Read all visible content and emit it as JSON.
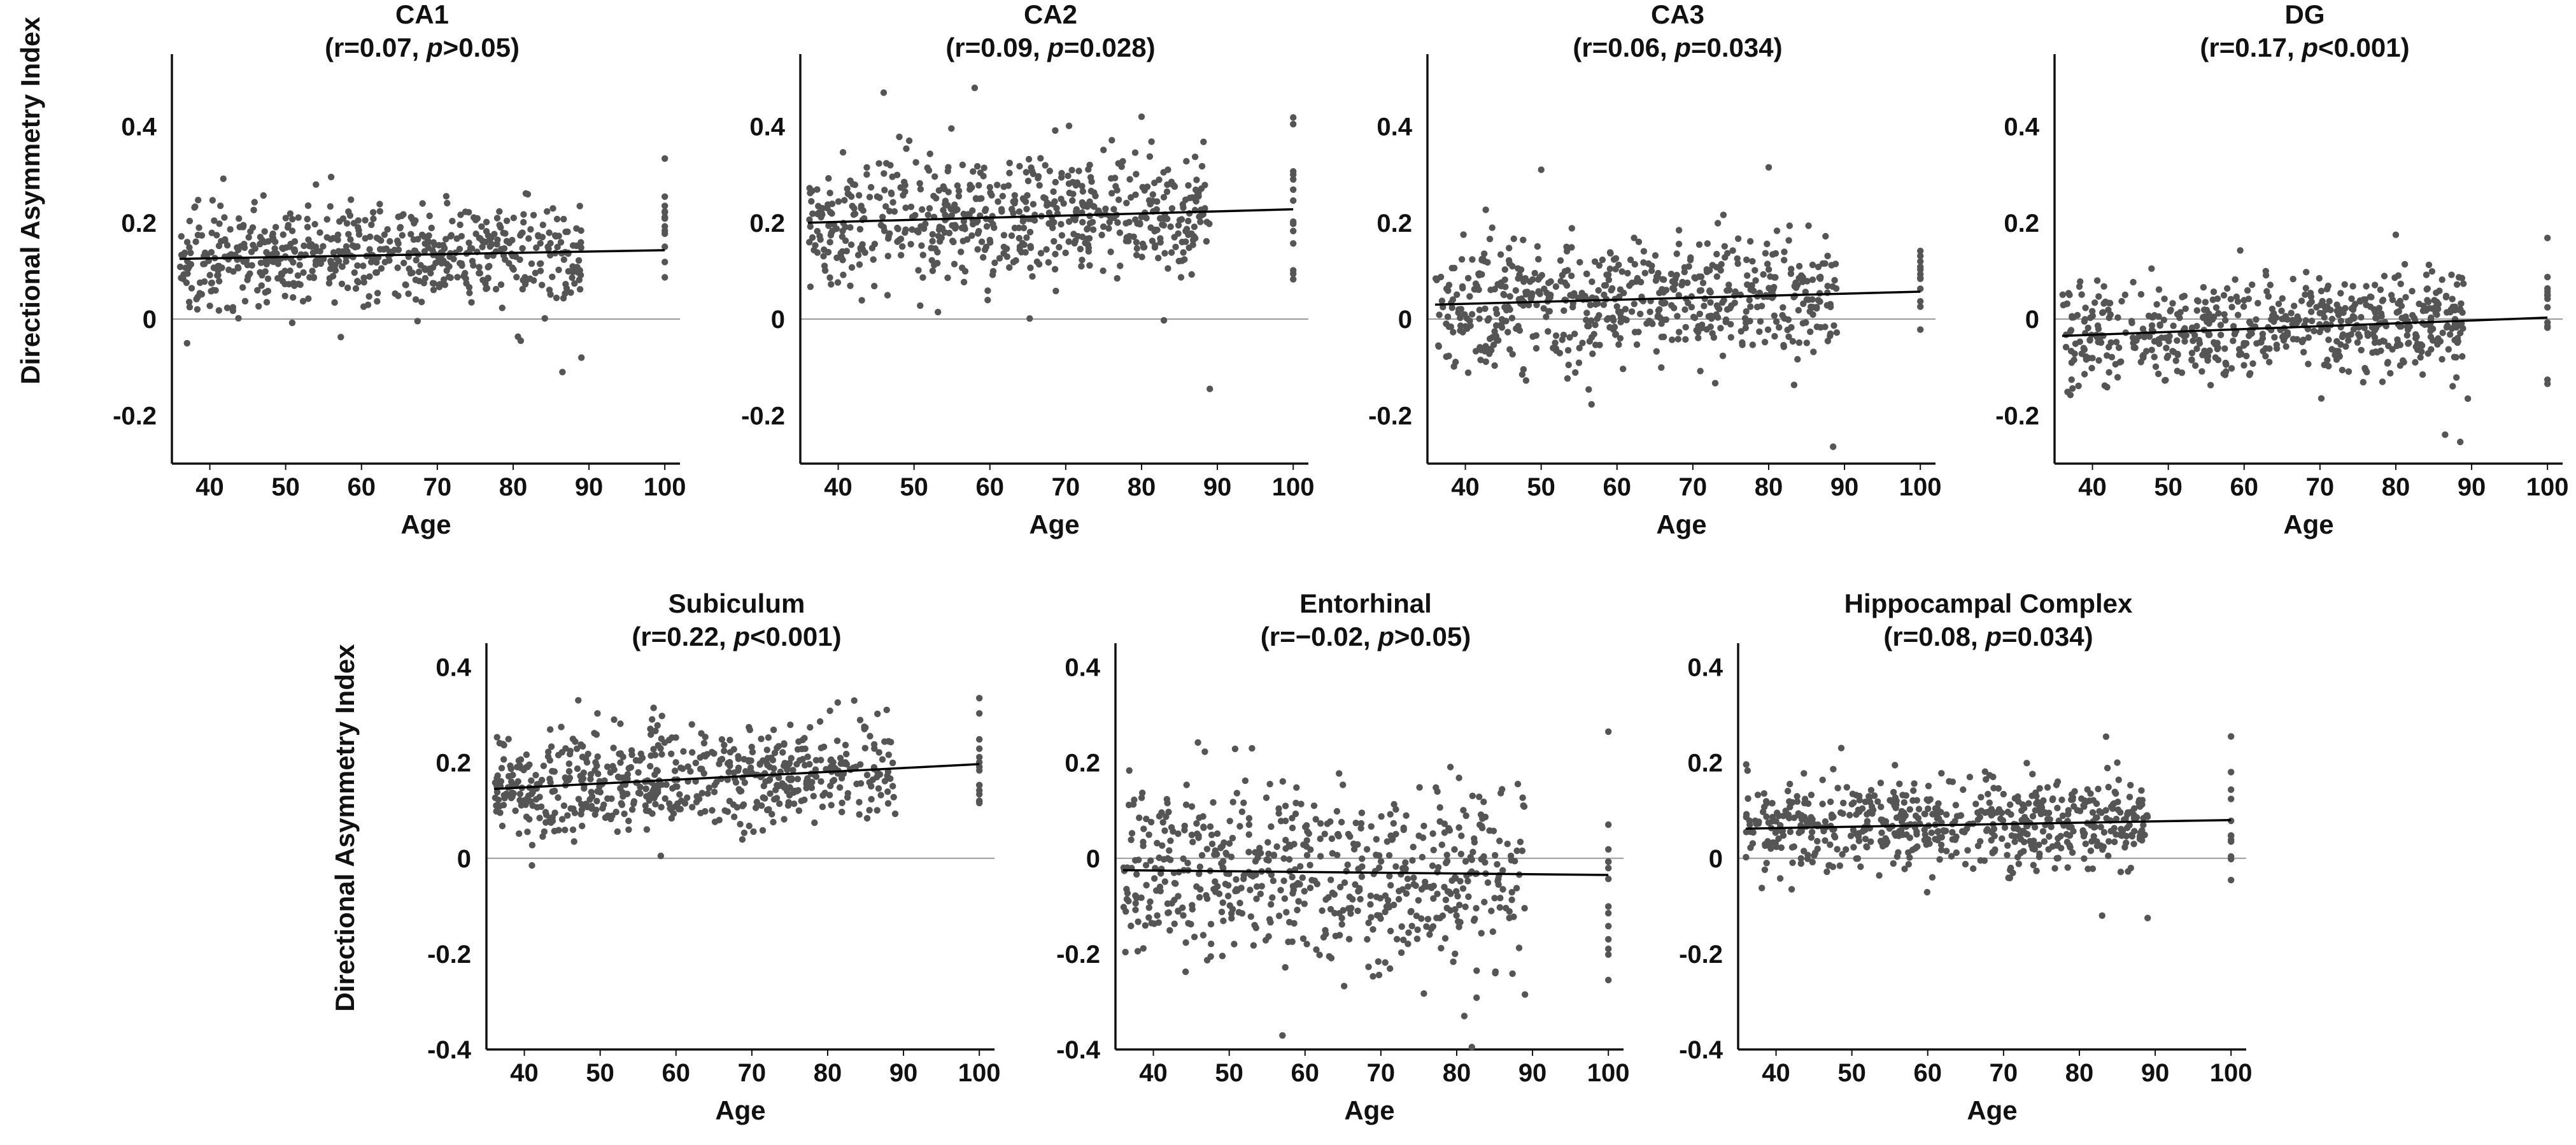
{
  "figure": {
    "ylabel": "Directional Asymmetry Index",
    "xlabel": "Age",
    "colors": {
      "point": "#555555",
      "axis": "#111111",
      "zero_line": "#9a9a9a",
      "trend": "#000000"
    }
  },
  "chart_data": [
    {
      "type": "scatter",
      "name": "CA1",
      "title": "CA1",
      "stat": {
        "r_text": "(r=0.07, ",
        "p_sym": "p",
        "p_text": ">0.05)"
      },
      "xlabel": "Age",
      "ylabel": "Directional Asymmetry Index",
      "xlim": [
        35,
        102
      ],
      "ylim": [
        -0.3,
        0.55
      ],
      "xticks": [
        40,
        50,
        60,
        70,
        80,
        90,
        100
      ],
      "yticks": [
        0.4,
        0.2,
        0,
        -0.2
      ],
      "ytick_labels": [
        "0.4",
        "0.2",
        "0",
        "-0.2"
      ],
      "point_model": {
        "mean_at_36": 0.125,
        "slope_per_year": 0.0003,
        "sd": 0.05,
        "n": 600,
        "x_range": [
          36,
          89
        ],
        "n_at_100": 14
      },
      "trend": {
        "x": [
          36,
          100
        ],
        "y": [
          0.125,
          0.143
        ]
      },
      "outliers": [
        [
          86.5,
          -0.11
        ],
        [
          89,
          -0.08
        ],
        [
          81,
          -0.045
        ],
        [
          37,
          -0.05
        ],
        [
          56,
          0.295
        ]
      ]
    },
    {
      "type": "scatter",
      "name": "CA2",
      "title": "CA2",
      "stat": {
        "r_text": "(r=0.09, ",
        "p_sym": "p",
        "p_text": "=0.028)"
      },
      "xlabel": "Age",
      "ylabel": "Directional Asymmetry Index",
      "xlim": [
        35,
        102
      ],
      "ylim": [
        -0.3,
        0.55
      ],
      "xticks": [
        40,
        50,
        60,
        70,
        80,
        90,
        100
      ],
      "yticks": [
        0.4,
        0.2,
        0,
        -0.2
      ],
      "ytick_labels": [
        "0.4",
        "0.2",
        "0",
        "-0.2"
      ],
      "point_model": {
        "mean_at_36": 0.2,
        "slope_per_year": 0.0004,
        "sd": 0.07,
        "n": 600,
        "x_range": [
          36,
          89
        ],
        "n_at_100": 14
      },
      "trend": {
        "x": [
          36,
          100
        ],
        "y": [
          0.2,
          0.228
        ]
      },
      "outliers": [
        [
          89,
          -0.145
        ],
        [
          46,
          0.47
        ],
        [
          80,
          0.42
        ],
        [
          58,
          0.48
        ]
      ]
    },
    {
      "type": "scatter",
      "name": "CA3",
      "title": "CA3",
      "stat": {
        "r_text": "(r=0.06, ",
        "p_sym": "p",
        "p_text": "=0.034)"
      },
      "xlabel": "Age",
      "ylabel": "Directional Asymmetry Index",
      "xlim": [
        35,
        102
      ],
      "ylim": [
        -0.3,
        0.55
      ],
      "xticks": [
        40,
        50,
        60,
        70,
        80,
        90,
        100
      ],
      "yticks": [
        0.4,
        0.2,
        0,
        -0.2
      ],
      "ytick_labels": [
        "0.4",
        "0.2",
        "0",
        "-0.2"
      ],
      "point_model": {
        "mean_at_36": 0.03,
        "slope_per_year": 0.0004,
        "sd": 0.065,
        "n": 600,
        "x_range": [
          36,
          89
        ],
        "n_at_100": 12
      },
      "trend": {
        "x": [
          36,
          100
        ],
        "y": [
          0.03,
          0.057
        ]
      },
      "outliers": [
        [
          88.5,
          -0.265
        ],
        [
          80,
          0.315
        ],
        [
          50,
          0.31
        ]
      ]
    },
    {
      "type": "scatter",
      "name": "DG",
      "title": "DG",
      "stat": {
        "r_text": "(r=0.17, ",
        "p_sym": "p",
        "p_text": "<0.001)"
      },
      "xlabel": "Age",
      "ylabel": "Directional Asymmetry Index",
      "xlim": [
        35,
        102
      ],
      "ylim": [
        -0.3,
        0.55
      ],
      "xticks": [
        40,
        50,
        60,
        70,
        80,
        90,
        100
      ],
      "yticks": [
        0.4,
        0.2,
        0,
        -0.2
      ],
      "ytick_labels": [
        "0.4",
        "0.2",
        "0",
        "-0.2"
      ],
      "point_model": {
        "mean_at_36": -0.035,
        "slope_per_year": 0.0006,
        "sd": 0.05,
        "n": 600,
        "x_range": [
          36,
          89
        ],
        "n_at_100": 14
      },
      "trend": {
        "x": [
          36,
          100
        ],
        "y": [
          -0.035,
          0.003
        ]
      },
      "outliers": [
        [
          86.5,
          -0.24
        ],
        [
          88.5,
          -0.255
        ],
        [
          89.5,
          -0.165
        ],
        [
          80,
          0.175
        ]
      ]
    },
    {
      "type": "scatter",
      "name": "Subiculum",
      "title": "Subiculum",
      "stat": {
        "r_text": "(r=0.22, ",
        "p_sym": "p",
        "p_text": "<0.001)"
      },
      "xlabel": "Age",
      "ylabel": "Directional Asymmetry Index",
      "xlim": [
        35,
        102
      ],
      "ylim": [
        -0.4,
        0.45
      ],
      "xticks": [
        40,
        50,
        60,
        70,
        80,
        90,
        100
      ],
      "yticks": [
        0.4,
        0.2,
        0,
        -0.2,
        -0.4
      ],
      "ytick_labels": [
        "0.4",
        "0.2",
        "0",
        "-0.2",
        "-0.4"
      ],
      "point_model": {
        "mean_at_36": 0.145,
        "slope_per_year": 0.0008,
        "sd": 0.055,
        "n": 600,
        "x_range": [
          36,
          89
        ],
        "n_at_100": 14
      },
      "trend": {
        "x": [
          36,
          100
        ],
        "y": [
          0.145,
          0.197
        ]
      },
      "outliers": [
        [
          41,
          -0.015
        ],
        [
          58,
          0.005
        ],
        [
          83.5,
          0.33
        ],
        [
          100,
          0.335
        ]
      ]
    },
    {
      "type": "scatter",
      "name": "Entorhinal",
      "title": "Entorhinal",
      "stat": {
        "r_text": "(r=−0.02, ",
        "p_sym": "p",
        "p_text": ">0.05)"
      },
      "xlabel": "Age",
      "ylabel": "Directional Asymmetry Index",
      "xlim": [
        35,
        102
      ],
      "ylim": [
        -0.4,
        0.45
      ],
      "xticks": [
        40,
        50,
        60,
        70,
        80,
        90,
        100
      ],
      "yticks": [
        0.4,
        0.2,
        0,
        -0.2,
        -0.4
      ],
      "ytick_labels": [
        "0.4",
        "0.2",
        "0",
        "-0.2",
        "-0.4"
      ],
      "point_model": {
        "mean_at_36": -0.025,
        "slope_per_year": -0.0001,
        "sd": 0.095,
        "n": 600,
        "x_range": [
          36,
          89
        ],
        "n_at_100": 13
      },
      "trend": {
        "x": [
          36,
          100
        ],
        "y": [
          -0.025,
          -0.035
        ]
      },
      "outliers": [
        [
          82,
          -0.395
        ],
        [
          81,
          -0.33
        ],
        [
          100,
          0.265
        ],
        [
          89,
          -0.285
        ],
        [
          53,
          0.23
        ]
      ]
    },
    {
      "type": "scatter",
      "name": "Hippocampal Complex",
      "title": "Hippocampal Complex",
      "stat": {
        "r_text": "(r=0.08, ",
        "p_sym": "p",
        "p_text": "=0.034)"
      },
      "xlabel": "Age",
      "ylabel": "Directional Asymmetry Index",
      "xlim": [
        35,
        102
      ],
      "ylim": [
        -0.4,
        0.45
      ],
      "xticks": [
        40,
        50,
        60,
        70,
        80,
        90,
        100
      ],
      "yticks": [
        0.4,
        0.2,
        0,
        -0.2,
        -0.4
      ],
      "ytick_labels": [
        "0.4",
        "0.2",
        "0",
        "-0.2",
        "-0.4"
      ],
      "point_model": {
        "mean_at_36": 0.062,
        "slope_per_year": 0.0003,
        "sd": 0.045,
        "n": 600,
        "x_range": [
          36,
          89
        ],
        "n_at_100": 12
      },
      "trend": {
        "x": [
          36,
          100
        ],
        "y": [
          0.062,
          0.08
        ]
      },
      "outliers": [
        [
          83,
          -0.12
        ],
        [
          89,
          -0.125
        ],
        [
          100,
          0.255
        ],
        [
          85,
          0.2
        ]
      ]
    }
  ]
}
